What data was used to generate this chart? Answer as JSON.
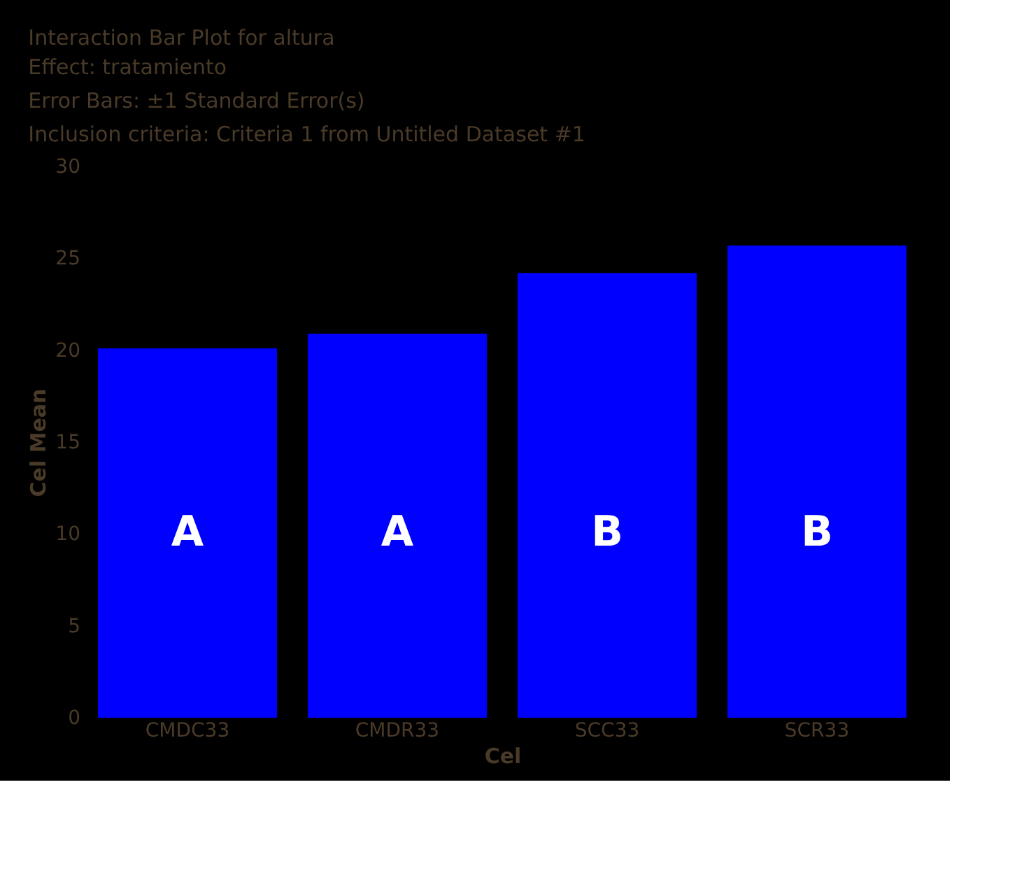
{
  "chart_data": {
    "type": "bar",
    "title": "Interaction Bar Plot for altura",
    "subtitle": "Effect: tratamiento\nError Bars: ±1 Standard Error(s)\nInclusion criteria: Criteria 1 from Untitled Dataset #1",
    "xlabel": "Cel",
    "ylabel": "Cel Mean",
    "categories": [
      "CMDC33",
      "CMDR33",
      "SCC33",
      "SCR33"
    ],
    "values": [
      20.1,
      20.9,
      24.2,
      25.7
    ],
    "color": "#0000ff",
    "ylim": [
      0,
      30
    ],
    "yticks": [
      0,
      5,
      10,
      15,
      20,
      25,
      30
    ],
    "grid": false,
    "annotations": [
      "A",
      "A",
      "B",
      "B"
    ]
  }
}
